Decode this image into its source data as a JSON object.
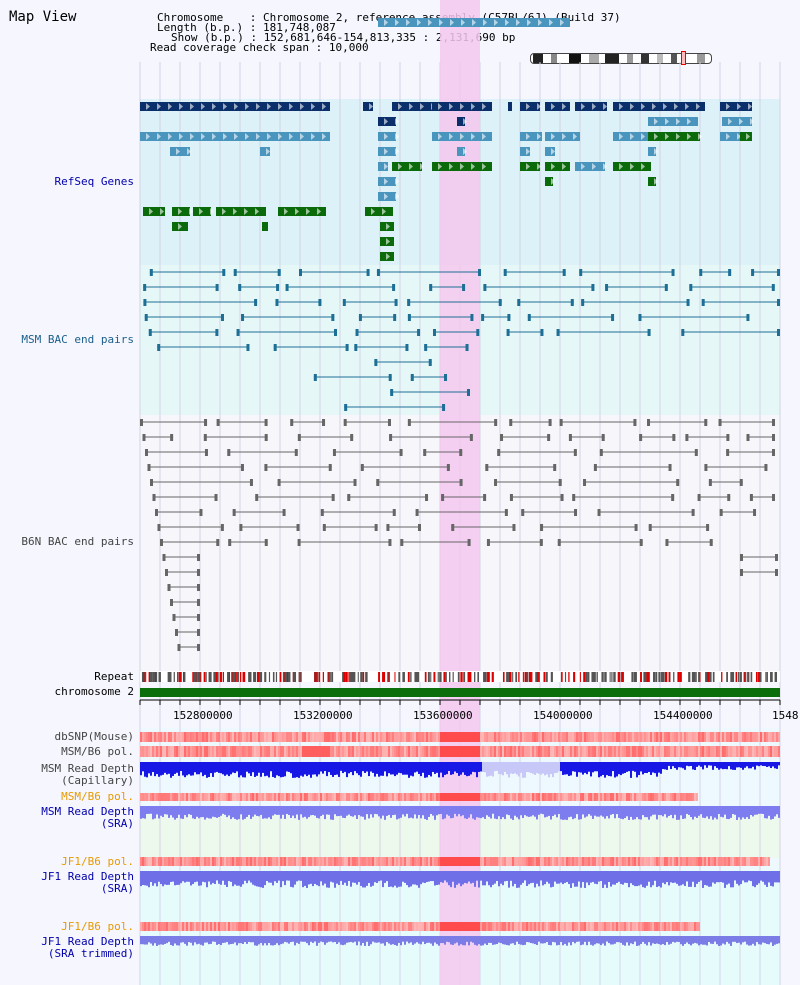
{
  "title": "Map View",
  "info": {
    "chromosome_key": "Chromosome",
    "chromosome_val": "Chromosome 2, reference assembly (C57BL/6J) (Build 37)",
    "length_key": "Length (b.p.)",
    "length_val": "181,748,087",
    "show_key": "Show (b.p.)",
    "show_val": "152,681,646-154,813,335 : 2,131,690 bp",
    "span_key": "Read coverage check span",
    "span_val": "10,000"
  },
  "tracks": {
    "refseq": "RefSeq Genes",
    "msm_bac": "MSM BAC end pairs",
    "b6n_bac": "B6N BAC end pairs",
    "repeat": "Repeat",
    "chromosome": "chromosome 2",
    "dbsnp": "dbSNP(Mouse)",
    "msm_b6_pol_1": "MSM/B6 pol.",
    "msm_read_depth_cap": "MSM Read Depth\n(Capillary)",
    "msm_b6_pol_2": "MSM/B6 pol.",
    "msm_read_depth_sra": "MSM Read Depth\n(SRA)",
    "jf1_b6_pol_1": "JF1/B6 pol.",
    "jf1_read_depth_sra": "JF1 Read Depth\n(SRA)",
    "jf1_b6_pol_2": "JF1/B6 pol.",
    "jf1_read_depth_trim": "JF1 Read Depth\n(SRA trimmed)"
  },
  "axis": {
    "ticks": [
      "152800000",
      "153200000",
      "153600000",
      "154000000",
      "154400000",
      "1548"
    ]
  },
  "colors": {
    "label_blue": "#0000aa",
    "label_teal": "#1a5f8a",
    "label_gray": "#444444",
    "label_orange": "#e69a00",
    "highlight": "#f4c8ee",
    "refseq_bg": "#dcf1f8",
    "msm_bg": "#e6f7f8"
  }
}
